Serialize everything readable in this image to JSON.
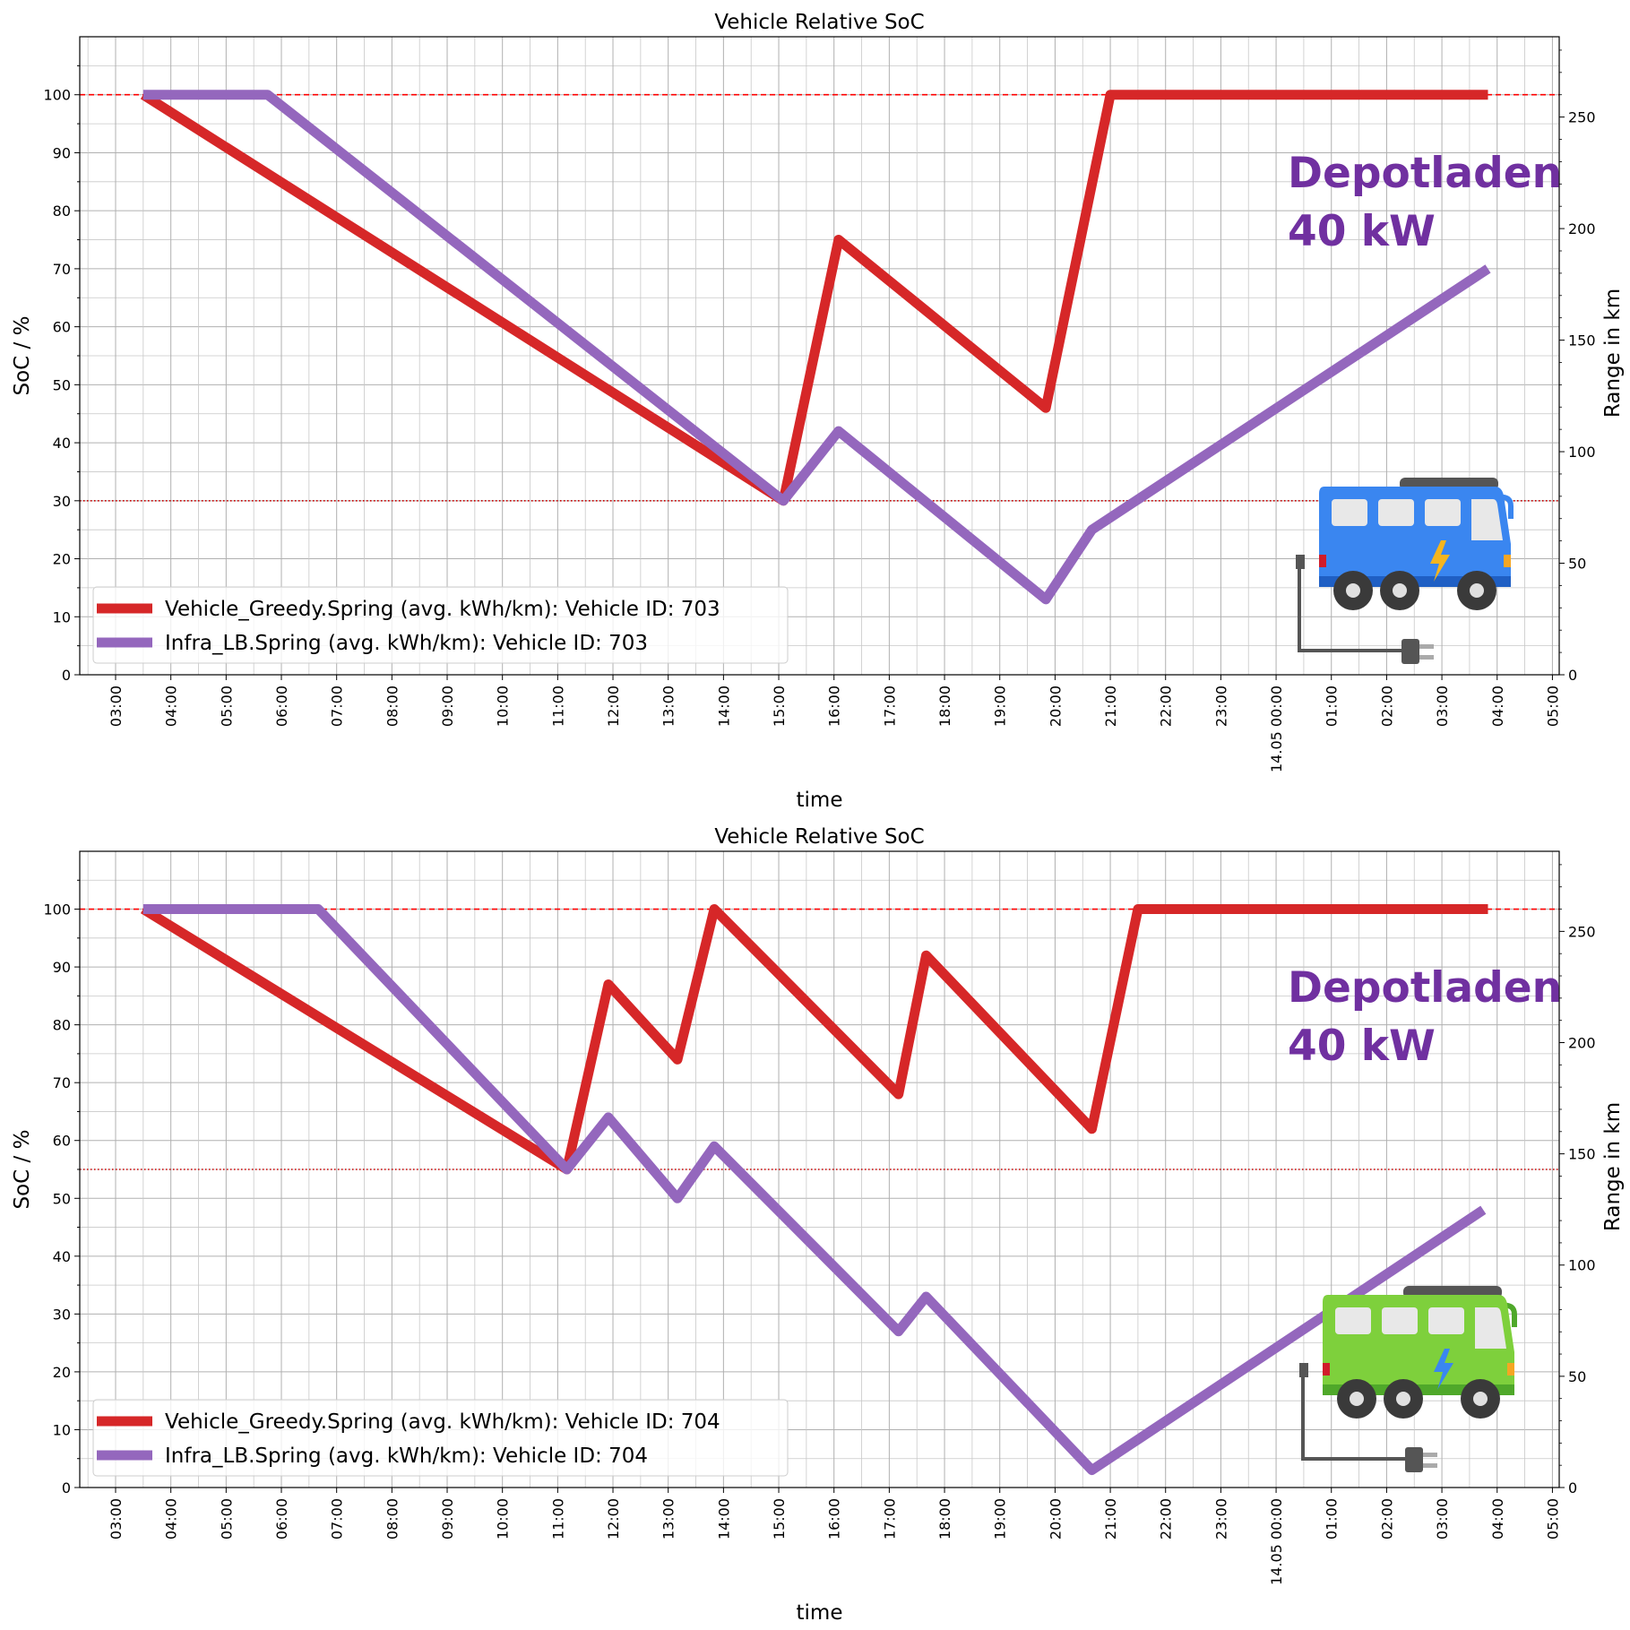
{
  "chart_data": [
    {
      "type": "line",
      "title": "Vehicle Relative SoC",
      "xlabel": "time",
      "ylabel": "SoC / %",
      "y2label": "Range in km",
      "ylim": [
        0,
        110
      ],
      "y2lim": [
        0,
        286
      ],
      "yticks": [
        "0",
        "10",
        "20",
        "30",
        "40",
        "50",
        "60",
        "70",
        "80",
        "90",
        "100"
      ],
      "y2ticks": [
        "0",
        "50",
        "100",
        "150",
        "200",
        "250"
      ],
      "xticks": [
        "03:00",
        "04:00",
        "05:00",
        "06:00",
        "07:00",
        "08:00",
        "09:00",
        "10:00",
        "11:00",
        "12:00",
        "13:00",
        "14:00",
        "15:00",
        "16:00",
        "17:00",
        "18:00",
        "19:00",
        "20:00",
        "21:00",
        "22:00",
        "23:00",
        "14.05 00:00",
        "01:00",
        "02:00",
        "03:00",
        "04:00",
        "05:00"
      ],
      "grid": true,
      "legend_position": "lower-left",
      "reference_lines": [
        {
          "style": "dashed",
          "color": "#ff0000",
          "y": 100
        },
        {
          "style": "dotted",
          "color": "#cc0000",
          "y": 30
        }
      ],
      "annotation": {
        "line1": "Depotladen",
        "line2": "40 kW",
        "color": "#7030a0"
      },
      "image": "blue-electric-bus-icon",
      "series": [
        {
          "name": "Vehicle_Greedy.Spring (avg. kWh/km): Vehicle ID: 703",
          "color": "#d62728",
          "x": [
            "03:30",
            "15:05",
            "16:05",
            "19:50",
            "21:00",
            "03:50"
          ],
          "y": [
            100,
            30,
            75,
            46,
            100,
            100
          ]
        },
        {
          "name": "Infra_LB.Spring (avg. kWh/km): Vehicle ID: 703",
          "color": "#9467bd",
          "x": [
            "03:30",
            "05:45",
            "15:05",
            "16:05",
            "19:50",
            "20:40",
            "03:50"
          ],
          "y": [
            100,
            100,
            30,
            42,
            13,
            25,
            70
          ]
        }
      ]
    },
    {
      "type": "line",
      "title": "Vehicle Relative SoC",
      "xlabel": "time",
      "ylabel": "SoC / %",
      "y2label": "Range in km",
      "ylim": [
        0,
        110
      ],
      "y2lim": [
        0,
        286
      ],
      "yticks": [
        "0",
        "10",
        "20",
        "30",
        "40",
        "50",
        "60",
        "70",
        "80",
        "90",
        "100"
      ],
      "y2ticks": [
        "0",
        "50",
        "100",
        "150",
        "200",
        "250"
      ],
      "xticks": [
        "03:00",
        "04:00",
        "05:00",
        "06:00",
        "07:00",
        "08:00",
        "09:00",
        "10:00",
        "11:00",
        "12:00",
        "13:00",
        "14:00",
        "15:00",
        "16:00",
        "17:00",
        "18:00",
        "19:00",
        "20:00",
        "21:00",
        "22:00",
        "23:00",
        "14.05 00:00",
        "01:00",
        "02:00",
        "03:00",
        "04:00",
        "05:00"
      ],
      "grid": true,
      "legend_position": "lower-left",
      "reference_lines": [
        {
          "style": "dashed",
          "color": "#ff0000",
          "y": 100
        },
        {
          "style": "dotted",
          "color": "#cc0000",
          "y": 55
        }
      ],
      "annotation": {
        "line1": "Depotladen",
        "line2": "40 kW",
        "color": "#7030a0"
      },
      "image": "green-electric-bus-icon",
      "series": [
        {
          "name": "Vehicle_Greedy.Spring (avg. kWh/km): Vehicle ID: 704",
          "color": "#d62728",
          "x": [
            "03:30",
            "11:10",
            "11:55",
            "13:10",
            "13:50",
            "17:10",
            "17:40",
            "20:40",
            "21:30",
            "03:50"
          ],
          "y": [
            100,
            55,
            87,
            74,
            100,
            68,
            92,
            62,
            100,
            100
          ]
        },
        {
          "name": "Infra_LB.Spring (avg. kWh/km): Vehicle ID: 704",
          "color": "#9467bd",
          "x": [
            "03:30",
            "06:40",
            "11:10",
            "11:55",
            "13:10",
            "13:50",
            "17:10",
            "17:40",
            "20:40",
            "03:45"
          ],
          "y": [
            100,
            100,
            55,
            64,
            50,
            59,
            27,
            33,
            3,
            48
          ]
        }
      ]
    }
  ]
}
